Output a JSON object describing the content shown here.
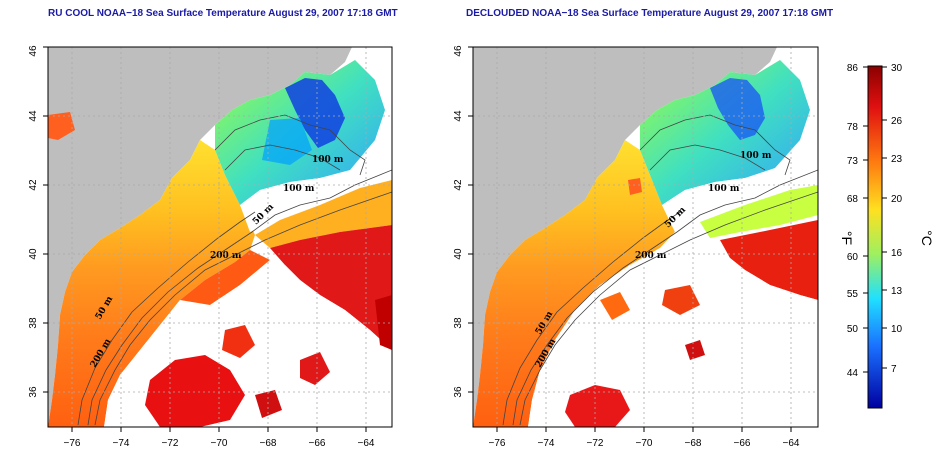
{
  "panels": [
    {
      "title": "RU COOL NOAA−18 Sea Surface Temperature August 29, 2007 17:18 GMT"
    },
    {
      "title": "DECLOUDED NOAA−18 Sea Surface Temperature August 29, 2007 17:18 GMT"
    }
  ],
  "axes": {
    "lon_ticks": [
      "−76",
      "−74",
      "−72",
      "−70",
      "−68",
      "−66",
      "−64"
    ],
    "lat_ticks": [
      "36",
      "38",
      "40",
      "42",
      "44",
      "46"
    ]
  },
  "depth_labels": {
    "d200": "200 m",
    "d100": "100 m",
    "d50": "50 m"
  },
  "colorbar": {
    "f_unit": "°F",
    "c_unit": "°C",
    "f_ticks": [
      "86",
      "78",
      "73",
      "68",
      "60",
      "55",
      "50",
      "44"
    ],
    "c_ticks": [
      "30",
      "26",
      "23",
      "20",
      "16",
      "13",
      "10",
      "7"
    ]
  },
  "colors": {
    "land": "#bebebe",
    "cloud": "#ffffff",
    "grid": "#bbbbbb",
    "cold": "#0000a0",
    "cool": "#00c8ff",
    "mild": "#fff000",
    "warm": "#ff8c1a",
    "hot": "#c00000"
  }
}
